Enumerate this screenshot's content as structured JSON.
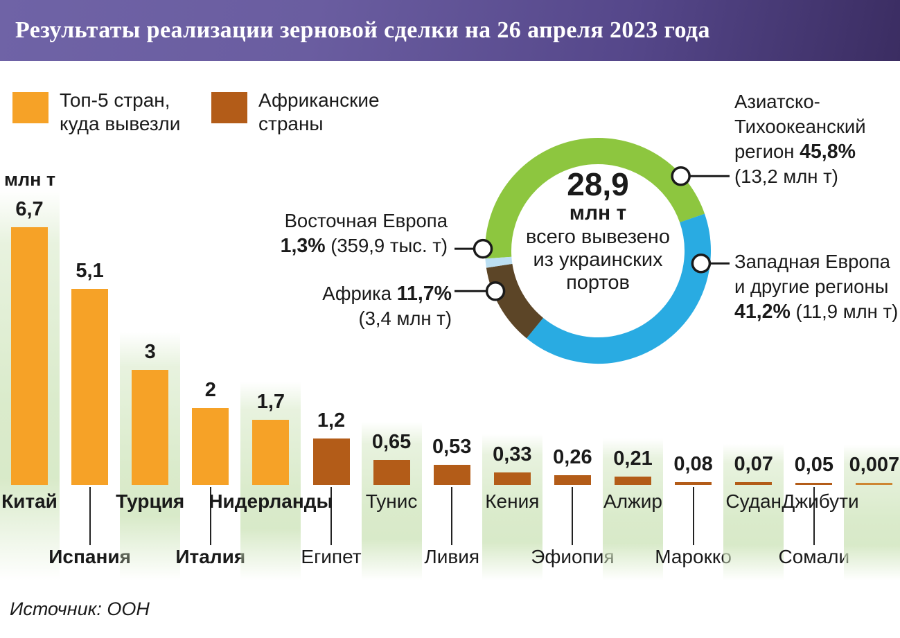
{
  "title": "Результаты реализации зерновой сделки на 26 апреля 2023 года",
  "legend": [
    {
      "label": "Топ-5 стран,\nкуда вывезли",
      "color": "#F6A227"
    },
    {
      "label": "Африканские\nстраны",
      "color": "#B35C18"
    }
  ],
  "unit_label": "млн т",
  "source": "Источник: ООН",
  "chart_data": {
    "type": "bar",
    "ylabel": "млн т",
    "colors": {
      "top5": "#F6A227",
      "africa": "#B35C18",
      "band": "#D5E8C4"
    },
    "bars": [
      {
        "country": "Китай",
        "value": 6.7,
        "value_label": "6,7",
        "group": "top5"
      },
      {
        "country": "Испания",
        "value": 5.1,
        "value_label": "5,1",
        "group": "top5"
      },
      {
        "country": "Турция",
        "value": 3,
        "value_label": "3",
        "group": "top5"
      },
      {
        "country": "Италия",
        "value": 2,
        "value_label": "2",
        "group": "top5"
      },
      {
        "country": "Нидерланды",
        "value": 1.7,
        "value_label": "1,7",
        "group": "top5"
      },
      {
        "country": "Египет",
        "value": 1.2,
        "value_label": "1,2",
        "group": "africa"
      },
      {
        "country": "Тунис",
        "value": 0.65,
        "value_label": "0,65",
        "group": "africa"
      },
      {
        "country": "Ливия",
        "value": 0.53,
        "value_label": "0,53",
        "group": "africa"
      },
      {
        "country": "Кения",
        "value": 0.33,
        "value_label": "0,33",
        "group": "africa"
      },
      {
        "country": "Эфиопия",
        "value": 0.26,
        "value_label": "0,26",
        "group": "africa"
      },
      {
        "country": "Алжир",
        "value": 0.21,
        "value_label": "0,21",
        "group": "africa"
      },
      {
        "country": "Марокко",
        "value": 0.08,
        "value_label": "0,08",
        "group": "africa"
      },
      {
        "country": "Судан",
        "value": 0.07,
        "value_label": "0,07",
        "group": "africa"
      },
      {
        "country": "Сомали",
        "value": 0.05,
        "value_label": "0,05",
        "group": "africa"
      },
      {
        "country": "Джибути",
        "value": 0.007,
        "value_label": "0,007",
        "group": "africa",
        "color": "#CE8633"
      }
    ],
    "donut": {
      "type": "pie",
      "center_value": "28,9",
      "center_unit": "млн т",
      "center_caption": "всего вывезено\nиз украинских\nпортов",
      "segments": [
        {
          "name": "Азиатско-Тихоокеанский регион",
          "percent": 45.8,
          "percent_label": "45,8%",
          "amount_label": "(13,2 млн т)",
          "color": "#8DC63F"
        },
        {
          "name": "Западная Европа и другие регионы",
          "percent": 41.2,
          "percent_label": "41,2%",
          "amount_label": "(11,9 млн т)",
          "color": "#29ABE2"
        },
        {
          "name": "Африка",
          "percent": 11.7,
          "percent_label": "11,7%",
          "amount_label": "(3,4 млн т)",
          "color": "#5C4527"
        },
        {
          "name": "Восточная Европа",
          "percent": 1.3,
          "percent_label": "1,3%",
          "amount_label": "(359,9 тыс. т)",
          "color": "#BCDFF2"
        }
      ],
      "callouts": [
        {
          "segment": 0,
          "lines": [
            [
              {
                "t": "Азиатско-"
              }
            ],
            [
              {
                "t": "Тихоокеанский"
              }
            ],
            [
              {
                "t": "регион "
              },
              {
                "t": "45,8%",
                "b": true
              }
            ],
            [
              {
                "t": "(13,2 млн т)"
              }
            ]
          ]
        },
        {
          "segment": 1,
          "lines": [
            [
              {
                "t": "Западная Европа"
              }
            ],
            [
              {
                "t": "и другие регионы"
              }
            ],
            [
              {
                "t": "41,2%",
                "b": true
              },
              {
                "t": " (11,9 млн т)"
              }
            ]
          ]
        },
        {
          "segment": 2,
          "lines": [
            [
              {
                "t": "Африка "
              },
              {
                "t": "11,7%",
                "b": true
              }
            ],
            [
              {
                "t": "(3,4 млн т)"
              }
            ]
          ]
        },
        {
          "segment": 3,
          "lines": [
            [
              {
                "t": "Восточная Европа"
              }
            ],
            [
              {
                "t": "1,3%",
                "b": true
              },
              {
                "t": " (359,9 тыс. т)"
              }
            ]
          ]
        }
      ]
    }
  }
}
